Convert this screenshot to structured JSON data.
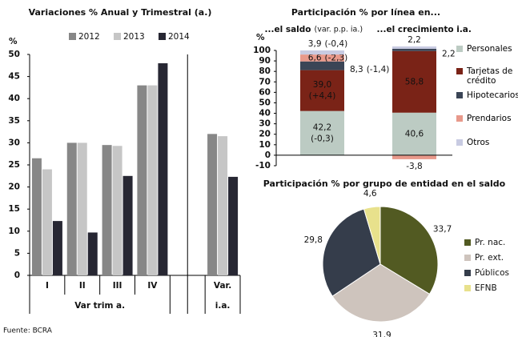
{
  "chart_data": [
    {
      "type": "bar",
      "title": "Variaciones % Anual y Trimestral (a.)",
      "y_label": "%",
      "categories": [
        "I",
        "II",
        "III",
        "IV",
        null,
        "Var."
      ],
      "groups": [
        "Var trim a.",
        "i.a."
      ],
      "series": [
        {
          "name": "2012",
          "color": "#878787",
          "values": [
            26.5,
            30,
            29.5,
            43,
            null,
            32
          ]
        },
        {
          "name": "2013",
          "color": "#c6c6c6",
          "values": [
            24,
            30,
            29.3,
            43,
            null,
            31.5
          ]
        },
        {
          "name": "2014",
          "color": "#272733",
          "values": [
            12.3,
            9.7,
            22.5,
            48,
            null,
            22.3
          ]
        }
      ],
      "ylim": [
        0,
        50
      ],
      "yticks": [
        0,
        5,
        10,
        15,
        20,
        25,
        30,
        35,
        40,
        45,
        50
      ]
    },
    {
      "type": "stacked_bar",
      "title": "Participación % por línea en...",
      "y_label": "%",
      "categories": [
        "...el saldo",
        "...el crecimiento i.a."
      ],
      "category_notes": [
        "(var. p.p. ia.)",
        null
      ],
      "series": [
        {
          "name": "Personales",
          "color": "#bccbc3",
          "values": [
            42.2,
            40.6
          ],
          "value_labels": [
            "42,2",
            "40,6"
          ],
          "change_labels": [
            "(-0,3)",
            null
          ]
        },
        {
          "name": "Tarjetas de crédito",
          "color": "#7a2317",
          "values": [
            39.0,
            58.8
          ],
          "value_labels": [
            "39,0",
            "58,8"
          ],
          "change_labels": [
            "(+4,4)",
            null
          ]
        },
        {
          "name": "Hipotecarios",
          "color": "#3b4556",
          "values": [
            8.3,
            2.2
          ],
          "value_labels": [
            "8,3",
            "2,2"
          ],
          "change_labels": [
            "(-1,4)",
            null
          ]
        },
        {
          "name": "Prendarios",
          "color": "#e8998b",
          "values": [
            6.6,
            -3.8
          ],
          "value_labels": [
            "6,6",
            "-3,8"
          ],
          "change_labels": [
            "(-2,3)",
            null
          ]
        },
        {
          "name": "Otros",
          "color": "#c8cbe2",
          "values": [
            3.9,
            2.2
          ],
          "value_labels": [
            "3,9",
            "2,2"
          ],
          "change_labels": [
            "(-0,4)",
            null
          ]
        }
      ],
      "ylim": [
        -10,
        100
      ],
      "yticks": [
        -10,
        0,
        10,
        20,
        30,
        40,
        50,
        60,
        70,
        80,
        90,
        100
      ]
    },
    {
      "type": "pie",
      "title": "Participación % por grupo de entidad en el saldo",
      "categories": [
        "Pr. nac.",
        "Pr. ext.",
        "Públicos",
        "EFNB"
      ],
      "values": [
        33.7,
        31.9,
        29.8,
        4.6
      ],
      "value_labels": [
        "33,7",
        "31,9",
        "29,8",
        "4,6"
      ],
      "colors": [
        "#525a22",
        "#cec4bd",
        "#353d4b",
        "#e8e18c"
      ]
    }
  ],
  "source": "Fuente: BCRA"
}
